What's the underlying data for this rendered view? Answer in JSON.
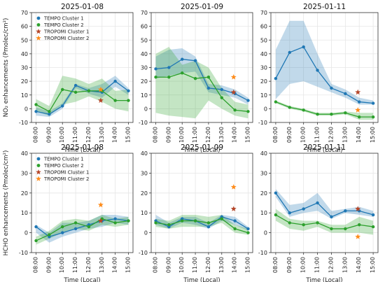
{
  "chart_data": [
    {
      "type": "line",
      "row": 0,
      "col": 0,
      "title": "2025-01-08",
      "xlabel": "Time (Local)",
      "ylabel": "NO₂ enhancements (Pmolec/cm²)",
      "categories": [
        "08:00",
        "09:00",
        "10:00",
        "11:00",
        "12:00",
        "13:00",
        "14:00",
        "15:00"
      ],
      "ylim": [
        -10,
        70
      ],
      "yticks": [
        -10,
        0,
        10,
        20,
        30,
        40,
        50,
        60,
        70
      ],
      "legend": "top-left",
      "series": [
        {
          "name": "TEMPO Cluster 1",
          "kind": "line",
          "color": "#1f77b4",
          "values": [
            -2,
            -4,
            2,
            17,
            13,
            12,
            20,
            13
          ],
          "band_low": [
            -5,
            -6,
            0,
            15,
            11,
            8,
            16,
            10
          ],
          "band_high": [
            1,
            -2,
            4,
            18,
            15,
            18,
            24,
            15
          ]
        },
        {
          "name": "TEMPO Cluster 2",
          "kind": "line",
          "color": "#2ca02c",
          "values": [
            3,
            -2,
            14,
            12,
            13,
            13,
            6,
            6
          ],
          "band_low": [
            -2,
            -5,
            3,
            5,
            9,
            5,
            0,
            -2
          ],
          "band_high": [
            7,
            2,
            24,
            22,
            18,
            22,
            13,
            14
          ]
        },
        {
          "name": "TROPOMI Cluster 1",
          "kind": "star",
          "color": "#b5472a",
          "x": 4.9,
          "y": 6
        },
        {
          "name": "TROPOMI Cluster 2",
          "kind": "star",
          "color": "#ff8c1a",
          "x": 4.9,
          "y": 14
        }
      ]
    },
    {
      "type": "line",
      "row": 0,
      "col": 1,
      "title": "2025-01-09",
      "xlabel": "Time (Local)",
      "categories": [
        "08:00",
        "09:00",
        "10:00",
        "11:00",
        "12:00",
        "13:00",
        "14:00",
        "15:00"
      ],
      "ylim": [
        -10,
        70
      ],
      "yticks": [
        -10,
        0,
        10,
        20,
        30,
        40,
        50,
        60,
        70
      ],
      "series": [
        {
          "name": "TEMPO Cluster 1",
          "kind": "line",
          "color": "#1f77b4",
          "values": [
            29,
            30,
            36,
            35,
            15,
            14,
            11,
            6
          ],
          "band_low": [
            22,
            24,
            26,
            27,
            12,
            10,
            8,
            3
          ],
          "band_high": [
            38,
            43,
            44,
            38,
            18,
            17,
            14,
            8
          ]
        },
        {
          "name": "TEMPO Cluster 2",
          "kind": "line",
          "color": "#2ca02c",
          "values": [
            23,
            23,
            26,
            22,
            23,
            8,
            -1,
            -2
          ],
          "band_low": [
            -3,
            -5,
            -6,
            -7,
            6,
            0,
            -5,
            -7
          ],
          "band_high": [
            40,
            45,
            32,
            35,
            30,
            15,
            5,
            3
          ]
        },
        {
          "name": "TROPOMI Cluster 1",
          "kind": "star",
          "color": "#b5472a",
          "x": 5.9,
          "y": 12
        },
        {
          "name": "TROPOMI Cluster 2",
          "kind": "star",
          "color": "#ff8c1a",
          "x": 5.9,
          "y": 23
        }
      ]
    },
    {
      "type": "line",
      "row": 0,
      "col": 2,
      "title": "2025-01-11",
      "xlabel": "Time (Local)",
      "categories": [
        "08:00",
        "09:00",
        "10:00",
        "11:00",
        "12:00",
        "13:00",
        "14:00",
        "15:00"
      ],
      "ylim": [
        -10,
        70
      ],
      "yticks": [
        -10,
        0,
        10,
        20,
        30,
        40,
        50,
        60,
        70
      ],
      "series": [
        {
          "name": "TEMPO Cluster 1",
          "kind": "line",
          "color": "#1f77b4",
          "values": [
            22,
            41,
            45,
            28,
            15,
            11,
            5,
            4
          ],
          "band_low": [
            7,
            18,
            20,
            16,
            12,
            8,
            3,
            3
          ],
          "band_high": [
            43,
            64,
            64,
            40,
            18,
            14,
            8,
            6
          ]
        },
        {
          "name": "TEMPO Cluster 2",
          "kind": "line",
          "color": "#2ca02c",
          "values": [
            5,
            1,
            -1,
            -4,
            -4,
            -3,
            -6,
            -6
          ],
          "band_low": [
            4,
            0,
            -2,
            -5,
            -5,
            -4,
            -8,
            -8
          ],
          "band_high": [
            6,
            2,
            0,
            -3,
            -3,
            -2,
            -3,
            -3
          ]
        },
        {
          "name": "TROPOMI Cluster 1",
          "kind": "star",
          "color": "#b5472a",
          "x": 5.9,
          "y": 12
        },
        {
          "name": "TROPOMI Cluster 2",
          "kind": "star",
          "color": "#ff8c1a",
          "x": 5.9,
          "y": -1
        }
      ]
    },
    {
      "type": "line",
      "row": 1,
      "col": 0,
      "title": "2025-01-08",
      "xlabel": "Time (Local)",
      "ylabel": "HCHO enhancements (Pmolec/cm²)",
      "categories": [
        "08:00",
        "09:00",
        "10:00",
        "11:00",
        "12:00",
        "13:00",
        "14:00",
        "15:00"
      ],
      "ylim": [
        -10,
        40
      ],
      "yticks": [
        -10,
        0,
        10,
        20,
        30,
        40
      ],
      "legend": "top-left",
      "series": [
        {
          "name": "TEMPO Cluster 1",
          "kind": "line",
          "color": "#1f77b4",
          "values": [
            3,
            -2,
            0,
            2,
            4,
            6,
            7,
            6
          ],
          "band_low": [
            0,
            -5,
            -2,
            0,
            2,
            3,
            5,
            4
          ],
          "band_high": [
            4,
            0,
            5,
            5,
            6,
            9,
            9,
            8
          ]
        },
        {
          "name": "TEMPO Cluster 2",
          "kind": "line",
          "color": "#2ca02c",
          "values": [
            -4,
            -1,
            3,
            5,
            3,
            7,
            5,
            6
          ],
          "band_low": [
            -6,
            -3,
            0,
            2,
            1,
            4,
            3,
            4
          ],
          "band_high": [
            -2,
            1,
            6,
            7,
            6,
            9,
            7,
            8
          ]
        },
        {
          "name": "TROPOMI Cluster 1",
          "kind": "star",
          "color": "#b5472a",
          "x": 4.9,
          "y": 6
        },
        {
          "name": "TROPOMI Cluster 2",
          "kind": "star",
          "color": "#ff8c1a",
          "x": 4.9,
          "y": 14
        }
      ]
    },
    {
      "type": "line",
      "row": 1,
      "col": 1,
      "title": "2025-01-09",
      "xlabel": "Time (Local)",
      "categories": [
        "08:00",
        "09:00",
        "10:00",
        "11:00",
        "12:00",
        "13:00",
        "14:00",
        "15:00"
      ],
      "ylim": [
        -10,
        40
      ],
      "yticks": [
        -10,
        0,
        10,
        20,
        30,
        40
      ],
      "series": [
        {
          "name": "TEMPO Cluster 1",
          "kind": "line",
          "color": "#1f77b4",
          "values": [
            6,
            3,
            7,
            6,
            3,
            8,
            6,
            2
          ],
          "band_low": [
            4,
            2,
            5,
            4,
            2,
            6,
            4,
            1
          ],
          "band_high": [
            9,
            5,
            8,
            8,
            5,
            9,
            8,
            3
          ]
        },
        {
          "name": "TEMPO Cluster 2",
          "kind": "line",
          "color": "#2ca02c",
          "values": [
            5,
            4,
            6,
            6,
            5,
            7,
            2,
            0
          ],
          "band_low": [
            3,
            2,
            3,
            3,
            3,
            5,
            0,
            -1
          ],
          "band_high": [
            7,
            6,
            9,
            9,
            8,
            9,
            4,
            2
          ]
        },
        {
          "name": "TROPOMI Cluster 1",
          "kind": "star",
          "color": "#b5472a",
          "x": 5.9,
          "y": 12
        },
        {
          "name": "TROPOMI Cluster 2",
          "kind": "star",
          "color": "#ff8c1a",
          "x": 5.9,
          "y": 23
        }
      ]
    },
    {
      "type": "line",
      "row": 1,
      "col": 2,
      "title": "2025-01-11",
      "xlabel": "Time (Local)",
      "categories": [
        "08:00",
        "09:00",
        "10:00",
        "11:00",
        "12:00",
        "13:00",
        "14:00",
        "15:00"
      ],
      "ylim": [
        -10,
        40
      ],
      "yticks": [
        -10,
        0,
        10,
        20,
        30,
        40
      ],
      "series": [
        {
          "name": "TEMPO Cluster 1",
          "kind": "line",
          "color": "#1f77b4",
          "values": [
            20,
            10,
            12,
            15,
            8,
            11,
            11,
            9
          ],
          "band_low": [
            18,
            8,
            10,
            11,
            7,
            10,
            9,
            8
          ],
          "band_high": [
            22,
            14,
            15,
            20,
            11,
            12,
            13,
            11
          ]
        },
        {
          "name": "TEMPO Cluster 2",
          "kind": "line",
          "color": "#2ca02c",
          "values": [
            9,
            5,
            4,
            5,
            2,
            2,
            4,
            3
          ],
          "band_low": [
            6,
            2,
            1,
            3,
            0,
            0,
            0,
            -1
          ],
          "band_high": [
            12,
            7,
            6,
            6,
            4,
            4,
            8,
            6
          ]
        },
        {
          "name": "TROPOMI Cluster 1",
          "kind": "star",
          "color": "#b5472a",
          "x": 5.9,
          "y": 12
        },
        {
          "name": "TROPOMI Cluster 2",
          "kind": "star",
          "color": "#ff8c1a",
          "x": 5.9,
          "y": -2
        }
      ]
    }
  ]
}
